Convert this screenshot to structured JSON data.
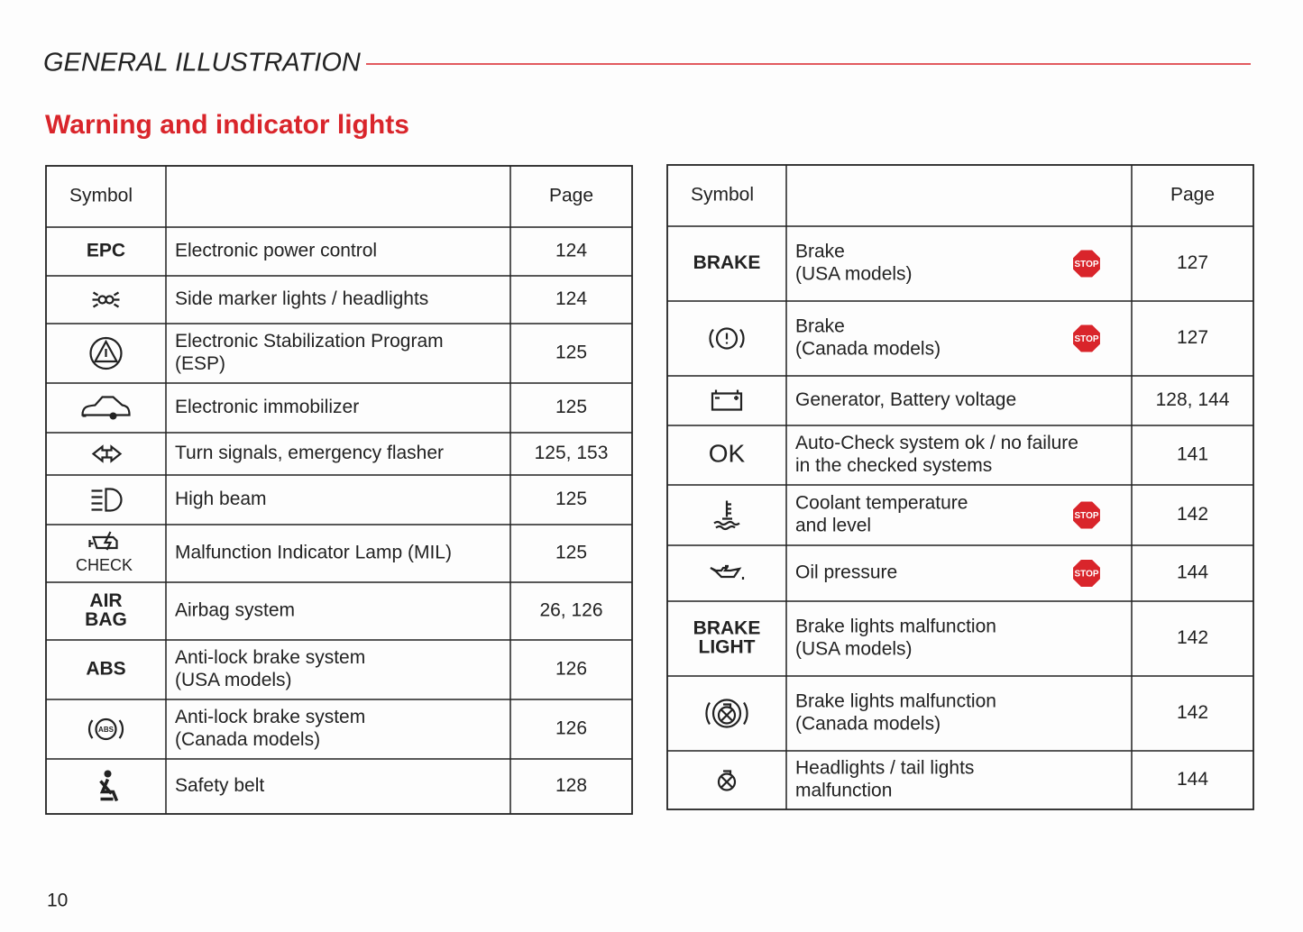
{
  "header": {
    "title": "GENERAL ILLUSTRATION",
    "subtitle": "Warning and indicator lights"
  },
  "tables": [
    {
      "headers": {
        "symbol": "Symbol",
        "page": "Page"
      },
      "rows": [
        {
          "symbol": [
            "EPC"
          ],
          "description": [
            "Electronic power control"
          ],
          "page": 124
        },
        {
          "description": [
            "Side marker lights / headlights"
          ],
          "page": 124
        },
        {
          "description": [
            "Electronic Stabilization Program",
            "(ESP)"
          ],
          "page": 125
        },
        {
          "description": [
            "Electronic immobilizer"
          ],
          "page": 125
        },
        {
          "description": [
            "Turn signals, emergency flasher"
          ],
          "page": "125, 153"
        },
        {
          "description": [
            "High beam"
          ],
          "page": 125
        },
        {
          "symbol": [
            "CHECK"
          ],
          "description": [
            "Malfunction Indicator Lamp (MIL)"
          ],
          "page": 125
        },
        {
          "symbol": [
            "AIR",
            "BAG"
          ],
          "description": [
            "Airbag system"
          ],
          "page": "26, 126"
        },
        {
          "symbol": [
            "ABS"
          ],
          "description": [
            "Anti-lock brake system",
            "(USA models)"
          ],
          "page": 126
        },
        {
          "symbol": [
            "ABS"
          ],
          "description": [
            "Anti-lock brake system",
            "(Canada models)"
          ],
          "page": 126
        },
        {
          "description": [
            "Safety belt"
          ],
          "page": 128
        }
      ]
    },
    {
      "headers": {
        "symbol": "Symbol",
        "page": "Page"
      },
      "rows": [
        {
          "symbol": [
            "BRAKE"
          ],
          "description": [
            "Brake",
            "(USA models)"
          ],
          "stop": "STOP",
          "page": 127
        },
        {
          "description": [
            "Brake",
            "(Canada models)"
          ],
          "stop": "STOP",
          "page": 127
        },
        {
          "description": [
            "Generator, Battery voltage"
          ],
          "page": "128, 144"
        },
        {
          "symbol": [
            "OK"
          ],
          "description": [
            "Auto-Check system ok / no failure",
            "in the checked systems"
          ],
          "page": 141
        },
        {
          "description": [
            "Coolant temperature",
            "and level"
          ],
          "stop": "STOP",
          "page": 142
        },
        {
          "description": [
            "Oil pressure"
          ],
          "stop": "STOP",
          "page": 144
        },
        {
          "symbol": [
            "BRAKE",
            "LIGHT"
          ],
          "description": [
            "Brake lights malfunction",
            "(USA models)"
          ],
          "page": 142
        },
        {
          "description": [
            "Brake lights malfunction",
            "(Canada models)"
          ],
          "page": 142
        },
        {
          "description": [
            "Headlights / tail lights",
            "malfunction"
          ],
          "page": 144
        }
      ]
    }
  ],
  "footer": {
    "page_number": 10
  }
}
